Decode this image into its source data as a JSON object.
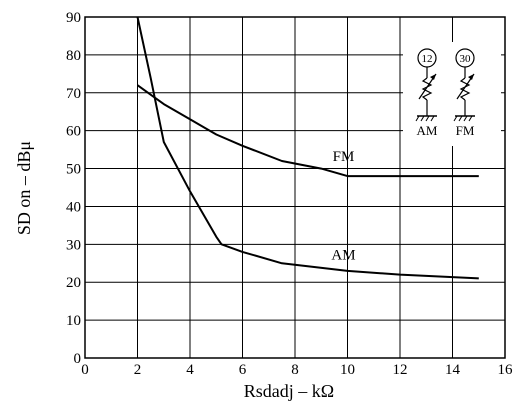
{
  "chart_data": {
    "type": "line",
    "xlabel": "Rsdadj – kΩ",
    "ylabel": "SD on – dBμ",
    "xlim": [
      0,
      16
    ],
    "ylim": [
      0,
      90
    ],
    "xticks": [
      0,
      2,
      4,
      6,
      8,
      10,
      12,
      14,
      16
    ],
    "yticks": [
      0,
      10,
      20,
      30,
      40,
      50,
      60,
      70,
      80,
      90
    ],
    "grid": true,
    "series": [
      {
        "name": "FM",
        "x": [
          2,
          2.6,
          3,
          4,
          5,
          6,
          7.5,
          9,
          10,
          12,
          15
        ],
        "y": [
          72,
          69,
          67,
          63,
          59,
          56,
          52,
          50,
          48,
          48,
          48
        ]
      },
      {
        "name": "AM",
        "x": [
          2,
          2.5,
          3,
          4,
          5,
          5.2,
          6,
          7.5,
          10,
          12,
          15
        ],
        "y": [
          90,
          74,
          57,
          44,
          32,
          30,
          28,
          25,
          23,
          22,
          21
        ]
      }
    ]
  },
  "inset": {
    "left": {
      "pin": "12",
      "label": "AM"
    },
    "right": {
      "pin": "30",
      "label": "FM"
    }
  }
}
